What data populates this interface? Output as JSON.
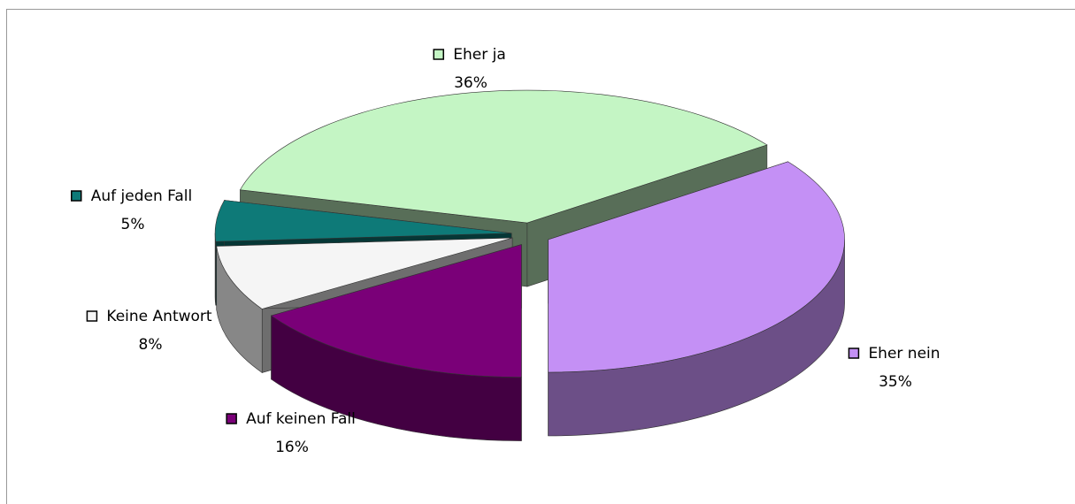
{
  "chart_data": {
    "type": "pie",
    "categories": [
      "Eher ja",
      "Eher nein",
      "Auf keinen Fall",
      "Keine Antwort",
      "Auf jeden Fall"
    ],
    "values": [
      36,
      35,
      16,
      8,
      5
    ],
    "value_labels": [
      "36%",
      "35%",
      "16%",
      "8%",
      "5%"
    ],
    "colors": [
      "#c4f5c4",
      "#c490f5",
      "#7a0078",
      "#f5f5f5",
      "#0e7a78"
    ]
  }
}
